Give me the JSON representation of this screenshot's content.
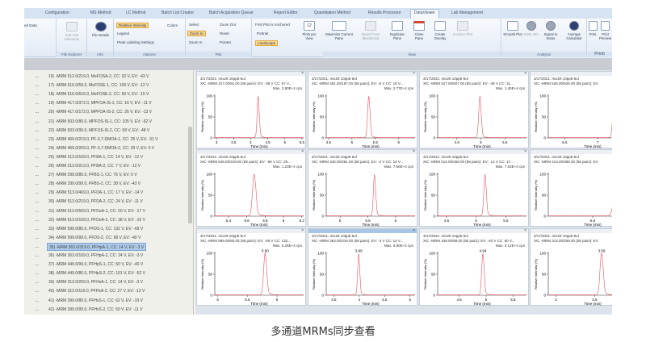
{
  "tabs": [
    "Configuration",
    "MS Method",
    "LC Method",
    "Batch List Creator",
    "Batch Acquisition Queue",
    "Report Editor",
    "Quantitation Method",
    "Results Processor",
    "DataViewer",
    "Lab Management"
  ],
  "active_tab": "DataViewer",
  "ribbon": {
    "partial_label": "ed Data",
    "file_explorer": {
      "label": "File Explorer",
      "sort": "Sort Sub Elements"
    },
    "info": {
      "label": "Info",
      "file_details": "File Details"
    },
    "options": {
      "label": "Options",
      "relative_intensity": "Relative Intensity",
      "legend": "Legend",
      "peak_labeling": "Peak Labeling Settings",
      "colors": "Colors"
    },
    "plot": {
      "label": "Plot",
      "select": "Select",
      "zoom_in": "Zoom In",
      "zoom_in2": "Zoom In",
      "zoom_out": "Zoom Out",
      "reset": "Reset",
      "pointer": "Pointer"
    },
    "layout": {
      "anchored": "First Plot Is Anchored",
      "portrait": "Portrait",
      "landscape": "Landscape",
      "plots_per_view": "Plots per View",
      "plots_count": "12"
    },
    "view": {
      "label": "View",
      "maximize": "Maximize Current Pane",
      "reset_max": "Reset From Maximized",
      "duplicate": "Duplicate Pane",
      "close": "Close Pane",
      "overlay": "Create Overlay",
      "contour": "Contour Plot"
    },
    "analysis": {
      "label": "Analysis",
      "smooth": "Smooth Plot",
      "ems": "EMS Info",
      "s2n": "Signal to Noise",
      "avg": "Average Calculator"
    },
    "print": {
      "label": "Printi",
      "print": "Print",
      "preview": "Print Preview"
    }
  },
  "list": {
    "selected": "35) -MRM 363.0/319.0, PFHpA-1, CC: 14 V, EV: -3 V",
    "items": [
      "16) -MRM 512.0/219.0, MeFOSA-2, CC: 32 V, EV: -43 V",
      "17) -MRM 616.0/59.0, MeFOSE-1, CC: 100 V, EV: -12 V",
      "18) -MRM 616.0/616.0, MeFOSE-2, CC: 50 V, EV: -15 V",
      "19) -MRM 417.0/372.0, MPFOA-IS-1, CC: 16 V, EV: -11 V",
      "20) -MRM 417.0/172.0, MPFOA-IS-2, CC: 26 V, EV: -13 V",
      "21) -MRM 503.0/80.0, MPFOS-IS-1, CC: 105 V, EV: -62 V",
      "22) -MRM 503.0/99.0, MPFOS-IS-2, CC: 58 V, EV: -48 V",
      "23) -MRM 469.0/219.0, PF-3,7-DMOA-1, CC: 25 V, EV: -31 V",
      "24) -MRM 469.0/269.0, PF-3,7-DMOA-2, CC: 29 V, EV: 0 V",
      "25) -MRM 213.0/169.0, PFBA-1, CC: 14 V, EV: -12 V",
      "26) -MRM 213.0/213.0, PFBA-2, CC: 7 V, EV: -12 V",
      "27) -MRM 299.0/80.0, PFBS-1, CC: 76 V, EV: 0 V",
      "28) -MRM 299.0/99.0, PFBS-2, CC: 38 V, EV: -43 V",
      "29) -MRM 513.0/469.0, PFDA-1, CC: 17 V, EV: -14 V",
      "30) -MRM 513.0/219.0, PFDA-2, CC: 24 V, EV: -11 V",
      "31) -MRM 613.0/569.0, PFDoA-1, CC: 20 V, EV: -17 V",
      "32) -MRM 613.0/169.0, PFDoA-2, CC: 38 V, EV: -16 V",
      "33) -MRM 599.0/80.0, PFDS-1, CC: 132 V, EV: -69 V",
      "34) -MRM 599.0/99.0, PFDS-2, CC: 68 V, EV: -40 V",
      "35) -MRM 363.0/319.0, PFHpA-1, CC: 14 V, EV: -3 V",
      "36) -MRM 363.0/169.0, PFHpA-2, CC: 24 V, EV: -3 V",
      "37) -MRM 449.0/99.0, PFHpS-1, CC: 50 V, EV: -40 V",
      "38) -MRM 449.0/80.0, PFHpS-2, CC: 101 V, EV: -52 V",
      "39) -MRM 313.0/269.0, PFHxA-1, CC: 14 V, EV: -3 V",
      "40) -MRM 313.0/119.0, PFHxA-2, CC: 27 V, EV: -13 V",
      "41) -MRM 399.0/80.0, PFHxS-1, CC: 62 V, EV: -19 V",
      "42) -MRM 399.0/99.0, PFHxS-2, CC: 50 V, EV: -11 V"
    ]
  },
  "chart_data": [
    {
      "type": "line",
      "title": "3/17/2021: mix29 10ppb-5ul",
      "subtitle": "XIC -MRM 427.00/81.00 (58 pairs): EV: -38 V CC: 67 V...",
      "max": "Max. 2.90E+4 cps",
      "xlabel": "Time (min)",
      "ylabel": "Relative Intensity (%)",
      "xlim": [
        2.95,
        5.55
      ],
      "xticks": [
        3,
        3.5,
        4,
        4.5,
        5,
        5.5
      ],
      "yticks": [
        0,
        50,
        100
      ],
      "peak": 4.22,
      "width": 0.03,
      "peak_label": ""
    },
    {
      "type": "line",
      "title": "3/17/2021: mix29 10ppb-5ul",
      "subtitle": "XIC -MRM 491.00/187.00 (58 pairs): EV: -5 V CC: 18 V...",
      "max": "Max. 2.77E+4 cps",
      "xlabel": "Time (min)",
      "ylabel": "Relative Intensity (%)",
      "xlim": [
        4.45,
        6.35
      ],
      "xticks": [
        4.5,
        5,
        5.5,
        6
      ],
      "yticks": [
        0,
        50,
        100
      ],
      "peak": 5.36,
      "width": 0.025,
      "peak_label": ""
    },
    {
      "type": "line",
      "title": "3/17/2021: mix29 10ppb-5ul",
      "subtitle": "XIC -MRM 527.00/507.00 (58 pairs): EV: -48 V CC: 31...",
      "max": "Max. 1.45E+4 cps",
      "xlabel": "Time (min)",
      "ylabel": "Relative Intensity (%)",
      "xlim": [
        4.1,
        5.95
      ],
      "xticks": [
        4.5,
        5,
        5.5
      ],
      "yticks": [
        0,
        50,
        100
      ],
      "peak": 4.98,
      "width": 0.025,
      "peak_label": ""
    },
    {
      "type": "line",
      "title": "3/17/2021: mix29 10ppb-5ul",
      "subtitle": "XIC -MRM 526.00/526.00 (58 pairs): EV",
      "max": "%",
      "xlabel": "Time (min)",
      "ylabel": "Relative Intensity (%)",
      "xlim": [
        6.25,
        7.6
      ],
      "xticks": [
        6.5,
        7,
        7.5
      ],
      "yticks": [
        0,
        50,
        100
      ],
      "peak": 7.25,
      "width": 0.02,
      "peak_label": ""
    },
    {
      "type": "line",
      "title": "3/17/2021: mix29 10ppb-5ul",
      "subtitle": "XIC -MRM 549.00/219.00 (58 pairs): EV: -68 V CC: 29...",
      "max": "Max. 1.23E+4 cps",
      "xlabel": "Time (min)",
      "ylabel": "Relative Intensity (%)",
      "xlim": [
        5.25,
        6.22
      ],
      "xticks": [
        5.4,
        5.6,
        5.8,
        6,
        6.2
      ],
      "yticks": [
        0,
        50,
        100
      ],
      "peak": 5.68,
      "width": 0.018,
      "peak_label": ""
    },
    {
      "type": "line",
      "title": "3/17/2021: mix29 10ppb-5ul",
      "subtitle": "XIC -MRM 345.00/281.00 (58 pairs): EV: -2 V CC: 16 V...",
      "max": "Max. 7.66E+4 cps",
      "xlabel": "Time (min)",
      "ylabel": "Relative Intensity (%)",
      "xlim": [
        4.75,
        6.35
      ],
      "xticks": [
        5,
        5.5,
        6
      ],
      "yticks": [
        0,
        50,
        100
      ],
      "peak": 5.62,
      "width": 0.02,
      "peak_label": ""
    },
    {
      "type": "line",
      "title": "3/17/2021: mix29 10ppb-5ul",
      "subtitle": "XIC -MRM 513.00/469.00 (58 pairs): EV: -14 V CC: 17...",
      "max": "Max. 7.63E+4 cps",
      "xlabel": "Time (min)",
      "ylabel": "Relative Intensity (%)",
      "xlim": [
        4.35,
        5.85
      ],
      "xticks": [
        4.5,
        5,
        5.5
      ],
      "yticks": [
        0,
        50,
        100
      ],
      "peak": 5.15,
      "width": 0.02,
      "peak_label": ""
    },
    {
      "type": "line",
      "title": "3/17/2021: mix29 10ppb-5ul",
      "subtitle": "XIC -MRM 413.00/369.00 (58 pairs): EV",
      "max": "%",
      "xlabel": "Time (min)",
      "ylabel": "Relative Intensity (%)",
      "xlim": [
        5.15,
        5.85
      ],
      "xticks": [
        5.5
      ],
      "yticks": [
        0,
        50,
        100
      ],
      "peak": 5.69,
      "width": 0.02,
      "peak_label": "5.69"
    },
    {
      "type": "line",
      "title": "3/17/2021: mix29 10ppb-5ul",
      "subtitle": "XIC -MRM 599.00/80.00 (58 pairs): EV: -69 V CC: 132...",
      "max": "Max. 5.25E+4 cps",
      "xlabel": "Time (min)",
      "ylabel": "Relative Intensity (%)",
      "xlim": [
        4.95,
        6.45
      ],
      "xticks": [
        5,
        5.5,
        6
      ],
      "yticks": [
        0,
        50,
        100
      ],
      "peak": 5.8,
      "width": 0.025,
      "peak_label": "5.80"
    },
    {
      "type": "line",
      "title": "3/17/2021: mix29 10ppb-5ul",
      "subtitle": "XIC -MRM 363.00/319.00 (58 pairs): EV: -3 V CC: 14 V...",
      "max": "Max. 6.80E+4 cps",
      "xlabel": "Time (min)",
      "ylabel": "Relative Intensity (%)",
      "xlim": [
        3.35,
        5.1
      ],
      "xticks": [
        3.5,
        4,
        4.5,
        5
      ],
      "yticks": [
        0,
        50,
        100
      ],
      "peak": 3.99,
      "width": 0.02,
      "peak_label": "3.99"
    },
    {
      "type": "line",
      "title": "3/17/2021: mix29 10ppb-5ul",
      "subtitle": "XIC -MRM 449.00/99.00 (58 pairs): EV: -40 V CC: 50 V...",
      "max": "Max. 2.12E+4 cps",
      "xlabel": "Time (min)",
      "ylabel": "Relative Intensity (%)",
      "xlim": [
        4.1,
        5.75
      ],
      "xticks": [
        4.5,
        5,
        5.5
      ],
      "yticks": [
        0,
        50,
        100
      ],
      "peak": 4.94,
      "width": 0.022,
      "peak_label": "4.94"
    },
    {
      "type": "line",
      "title": "3/17/2021: mix29 10ppb-5ul",
      "subtitle": "XIC -MRM 313.00/269.00 (58 pairs): EV",
      "max": "%",
      "xlabel": "Time (min)",
      "ylabel": "Relative Intensity (%)",
      "xlim": [
        2.9,
        4.05
      ],
      "xticks": [
        3,
        3.5,
        4
      ],
      "yticks": [
        0,
        50,
        100
      ],
      "peak": 3.59,
      "width": 0.02,
      "peak_label": "3.59"
    }
  ],
  "selected_pane": 9,
  "colors": {
    "trace": "#e8555e",
    "selection": "#aecbeb",
    "highlight": "#fbd68c"
  },
  "caption": "多通道MRMs同步查看"
}
